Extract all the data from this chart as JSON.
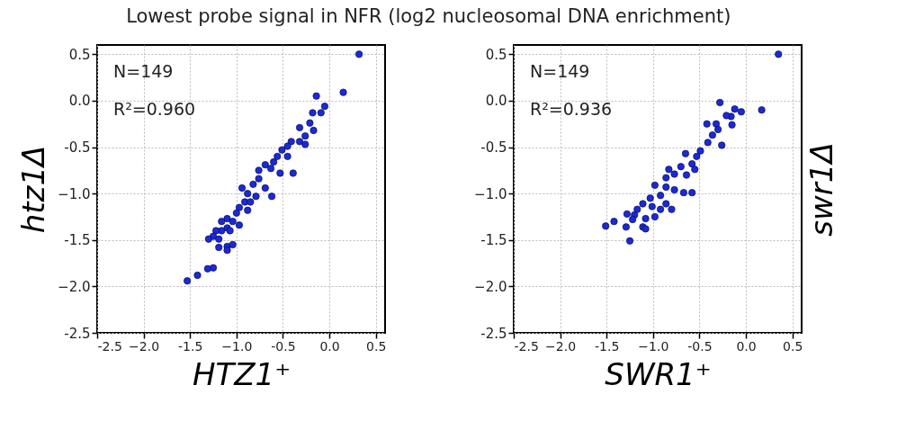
{
  "chart_data": [
    {
      "type": "scatter",
      "title": "Lowest probe signal in NFR (log2 nucleosomal DNA enrichment)",
      "xlabel": "HTZ1⁺",
      "ylabel": "htz1Δ",
      "annotations": [
        "N=149",
        "R²=0.960"
      ],
      "xlim": [
        -2.5,
        0.6
      ],
      "ylim": [
        -2.5,
        0.6
      ],
      "xticks": [
        -2.5,
        {
          "value": -2,
          "label": "−2.0"
        },
        -1.5,
        {
          "value": -1,
          "label": "−1.0"
        },
        -0.5,
        {
          "value": 0,
          "label": "0.0"
        },
        0.5
      ],
      "yticks": [
        -2.5,
        {
          "value": -2,
          "label": "−2.0"
        },
        -1.5,
        {
          "value": -1,
          "label": "−1.0"
        },
        -0.5,
        {
          "value": 0,
          "label": "0.0"
        },
        0.5
      ],
      "grid": true,
      "marker": "circle",
      "x": [
        0.32,
        0.15,
        -0.14,
        -0.05,
        -0.09,
        -0.18,
        -0.21,
        -0.17,
        -0.26,
        -0.32,
        -0.41,
        -0.26,
        -0.51,
        -0.39,
        -0.45,
        -0.6,
        -0.69,
        -0.63,
        -0.53,
        -0.76,
        -0.82,
        -0.69,
        -0.62,
        -0.88,
        -0.79,
        -0.91,
        -0.97,
        -0.88,
        -1.0,
        -1.1,
        -1.04,
        -0.97,
        -1.1,
        -1.16,
        -1.22,
        -1.07,
        -1.25,
        -1.3,
        -1.19,
        -1.19,
        -1.1,
        -1.04,
        -1.1,
        -1.25,
        -1.31,
        -1.42,
        -1.53,
        -0.76,
        -0.94,
        -0.56,
        -0.45,
        -0.32,
        -0.85,
        -1.16
      ],
      "series": [
        {
          "color": "#1a2ad8",
          "values": [
            0.5,
            0.09,
            0.05,
            -0.06,
            -0.13,
            -0.13,
            -0.24,
            -0.32,
            -0.38,
            -0.44,
            -0.44,
            -0.47,
            -0.53,
            -0.78,
            -0.6,
            -0.66,
            -0.69,
            -0.73,
            -0.78,
            -0.84,
            -0.9,
            -0.94,
            -1.03,
            -1.0,
            -1.03,
            -1.09,
            -1.15,
            -1.18,
            -1.21,
            -1.27,
            -1.3,
            -1.34,
            -1.37,
            -1.4,
            -1.4,
            -1.4,
            -1.46,
            -1.49,
            -1.49,
            -1.58,
            -1.57,
            -1.55,
            -1.61,
            -1.8,
            -1.81,
            -1.88,
            -1.94,
            -0.75,
            -0.94,
            -0.6,
            -0.49,
            -0.29,
            -1.09,
            -1.3
          ]
        }
      ]
    },
    {
      "type": "scatter",
      "xlabel": "SWR1⁺",
      "ylabel": "swr1Δ",
      "annotations": [
        "N=149",
        "R²=0.936"
      ],
      "xlim": [
        -2.5,
        0.6
      ],
      "ylim": [
        -2.5,
        0.6
      ],
      "xticks": [
        -2.5,
        {
          "value": -2,
          "label": "−2.0"
        },
        -1.5,
        {
          "value": -1,
          "label": "−1.0"
        },
        -0.5,
        {
          "value": 0,
          "label": "0.0"
        },
        0.5
      ],
      "yticks": [
        -2.5,
        {
          "value": -2,
          "label": "−2.0"
        },
        -1.5,
        {
          "value": -1,
          "label": "−1.0"
        },
        -0.5,
        {
          "value": 0,
          "label": "0.0"
        },
        0.5
      ],
      "grid": true,
      "marker": "circle",
      "x": [
        0.35,
        0.17,
        -0.28,
        -0.12,
        -0.05,
        -0.16,
        -0.21,
        -0.32,
        -0.42,
        -0.15,
        -0.3,
        -0.36,
        -0.41,
        -0.26,
        -0.49,
        -0.53,
        -0.65,
        -0.58,
        -0.7,
        -0.83,
        -0.77,
        -0.64,
        -0.58,
        -0.67,
        -0.86,
        -0.98,
        -0.86,
        -0.77,
        -0.92,
        -1.03,
        -1.11,
        -1.01,
        -0.92,
        -0.8,
        -1.17,
        -1.2,
        -0.98,
        -1.08,
        -1.28,
        -1.22,
        -1.42,
        -1.51,
        -1.29,
        -1.11,
        -1.08,
        -1.25,
        -0.86,
        -0.55
      ],
      "series": [
        {
          "color": "#1a2ad8",
          "values": [
            0.5,
            -0.1,
            -0.02,
            -0.09,
            -0.12,
            -0.17,
            -0.16,
            -0.25,
            -0.25,
            -0.26,
            -0.31,
            -0.37,
            -0.45,
            -0.48,
            -0.54,
            -0.6,
            -0.57,
            -0.68,
            -0.71,
            -0.74,
            -0.79,
            -0.8,
            -0.99,
            -0.99,
            -0.83,
            -0.91,
            -0.93,
            -0.96,
            -1.02,
            -1.05,
            -1.11,
            -1.14,
            -1.17,
            -1.17,
            -1.17,
            -1.23,
            -1.25,
            -1.27,
            -1.22,
            -1.28,
            -1.3,
            -1.35,
            -1.36,
            -1.36,
            -1.38,
            -1.51,
            -1.11,
            -0.74
          ]
        }
      ]
    }
  ]
}
